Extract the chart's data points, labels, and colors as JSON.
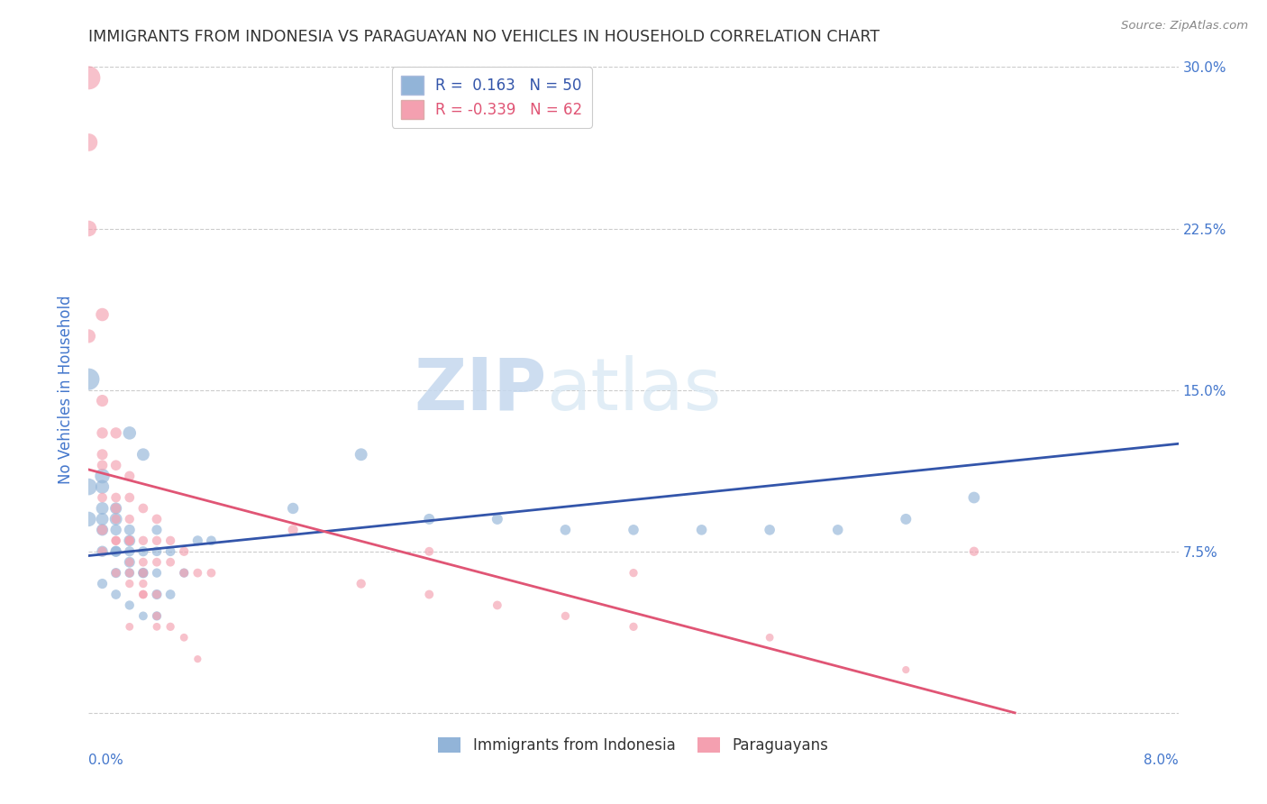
{
  "title": "IMMIGRANTS FROM INDONESIA VS PARAGUAYAN NO VEHICLES IN HOUSEHOLD CORRELATION CHART",
  "source": "Source: ZipAtlas.com",
  "ylabel": "No Vehicles in Household",
  "legend_blue_r": "0.163",
  "legend_blue_n": "50",
  "legend_pink_r": "-0.339",
  "legend_pink_n": "62",
  "watermark_zip": "ZIP",
  "watermark_atlas": "atlas",
  "blue_color": "#92B4D8",
  "pink_color": "#F4A0B0",
  "blue_line_color": "#3355AA",
  "pink_line_color": "#E05575",
  "axis_label_color": "#4477CC",
  "grid_color": "#CCCCCC",
  "blue_scatter_x": [
    0.001,
    0.001,
    0.001,
    0.001,
    0.002,
    0.002,
    0.002,
    0.002,
    0.003,
    0.003,
    0.003,
    0.004,
    0.004,
    0.005,
    0.005,
    0.005,
    0.006,
    0.007,
    0.008,
    0.009,
    0.0,
    0.0,
    0.0,
    0.001,
    0.001,
    0.002,
    0.002,
    0.003,
    0.003,
    0.004,
    0.005,
    0.005,
    0.006,
    0.001,
    0.002,
    0.003,
    0.004,
    0.003,
    0.004,
    0.015,
    0.02,
    0.025,
    0.03,
    0.035,
    0.04,
    0.045,
    0.05,
    0.055,
    0.06,
    0.065
  ],
  "blue_scatter_y": [
    0.105,
    0.095,
    0.085,
    0.075,
    0.095,
    0.085,
    0.075,
    0.065,
    0.085,
    0.075,
    0.065,
    0.075,
    0.065,
    0.085,
    0.075,
    0.065,
    0.075,
    0.065,
    0.08,
    0.08,
    0.155,
    0.105,
    0.09,
    0.11,
    0.09,
    0.09,
    0.075,
    0.08,
    0.07,
    0.065,
    0.055,
    0.045,
    0.055,
    0.06,
    0.055,
    0.05,
    0.045,
    0.13,
    0.12,
    0.095,
    0.12,
    0.09,
    0.09,
    0.085,
    0.085,
    0.085,
    0.085,
    0.085,
    0.09,
    0.1
  ],
  "blue_scatter_s": [
    120,
    100,
    90,
    80,
    90,
    80,
    70,
    65,
    75,
    65,
    60,
    65,
    55,
    65,
    60,
    55,
    60,
    55,
    65,
    60,
    300,
    180,
    140,
    140,
    100,
    100,
    80,
    85,
    75,
    70,
    65,
    55,
    60,
    65,
    60,
    55,
    50,
    110,
    100,
    80,
    100,
    75,
    75,
    70,
    70,
    70,
    70,
    70,
    75,
    85
  ],
  "pink_scatter_x": [
    0.0,
    0.0,
    0.0,
    0.001,
    0.001,
    0.001,
    0.001,
    0.001,
    0.002,
    0.002,
    0.002,
    0.002,
    0.003,
    0.003,
    0.003,
    0.003,
    0.004,
    0.004,
    0.004,
    0.005,
    0.005,
    0.005,
    0.006,
    0.006,
    0.007,
    0.007,
    0.008,
    0.009,
    0.001,
    0.002,
    0.002,
    0.003,
    0.003,
    0.004,
    0.004,
    0.005,
    0.005,
    0.006,
    0.007,
    0.008,
    0.015,
    0.02,
    0.025,
    0.03,
    0.035,
    0.04,
    0.05,
    0.06,
    0.001,
    0.002,
    0.003,
    0.003,
    0.004,
    0.005,
    0.025,
    0.04,
    0.002,
    0.003,
    0.004,
    0.065,
    0.0,
    0.001
  ],
  "pink_scatter_y": [
    0.295,
    0.265,
    0.175,
    0.185,
    0.145,
    0.13,
    0.115,
    0.1,
    0.13,
    0.115,
    0.1,
    0.09,
    0.11,
    0.1,
    0.09,
    0.08,
    0.095,
    0.08,
    0.07,
    0.09,
    0.08,
    0.07,
    0.08,
    0.07,
    0.075,
    0.065,
    0.065,
    0.065,
    0.12,
    0.095,
    0.08,
    0.08,
    0.065,
    0.065,
    0.055,
    0.055,
    0.045,
    0.04,
    0.035,
    0.025,
    0.085,
    0.06,
    0.055,
    0.05,
    0.045,
    0.04,
    0.035,
    0.02,
    0.075,
    0.065,
    0.06,
    0.04,
    0.055,
    0.04,
    0.075,
    0.065,
    0.08,
    0.07,
    0.06,
    0.075,
    0.225,
    0.085
  ],
  "pink_scatter_s": [
    350,
    200,
    120,
    110,
    90,
    80,
    70,
    60,
    80,
    70,
    60,
    55,
    65,
    60,
    55,
    50,
    60,
    55,
    50,
    60,
    55,
    50,
    55,
    50,
    55,
    50,
    50,
    50,
    75,
    65,
    55,
    60,
    50,
    55,
    50,
    50,
    45,
    45,
    40,
    35,
    65,
    55,
    50,
    50,
    45,
    45,
    40,
    35,
    55,
    50,
    45,
    40,
    45,
    40,
    50,
    45,
    55,
    50,
    45,
    55,
    160,
    70
  ],
  "xlim": [
    0.0,
    0.08
  ],
  "ylim": [
    -0.005,
    0.305
  ],
  "blue_trend_x": [
    0.0,
    0.08
  ],
  "blue_trend_y": [
    0.073,
    0.125
  ],
  "pink_trend_x": [
    0.0,
    0.068
  ],
  "pink_trend_y": [
    0.113,
    0.0
  ],
  "yticks": [
    0.0,
    0.075,
    0.15,
    0.225,
    0.3
  ],
  "ytick_labels_right": [
    "",
    "7.5%",
    "15.0%",
    "22.5%",
    "30.0%"
  ]
}
